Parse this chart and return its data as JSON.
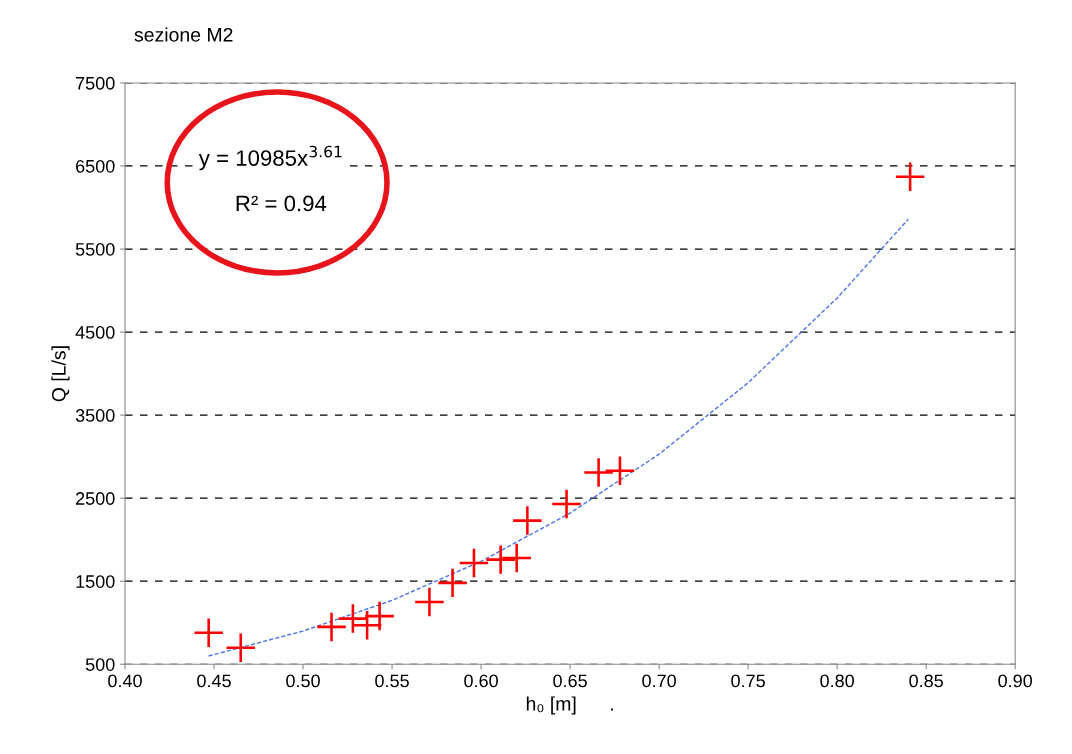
{
  "chart_data": {
    "type": "scatter",
    "title": "sezione M2",
    "xlabel": "h₀ [m]      .",
    "ylabel": "Q [L/s]",
    "xlim": [
      0.4,
      0.9
    ],
    "xticks": [
      {
        "value": 0.4,
        "label": "0.40"
      },
      {
        "value": 0.45,
        "label": "0.45"
      },
      {
        "value": 0.5,
        "label": "0.50"
      },
      {
        "value": 0.55,
        "label": "0.55"
      },
      {
        "value": 0.6,
        "label": "0.60"
      },
      {
        "value": 0.65,
        "label": "0.65"
      },
      {
        "value": 0.7,
        "label": "0.70"
      },
      {
        "value": 0.75,
        "label": "0.75"
      },
      {
        "value": 0.8,
        "label": "0.80"
      },
      {
        "value": 0.85,
        "label": "0.85"
      },
      {
        "value": 0.9,
        "label": "0.90"
      }
    ],
    "ylim": [
      500,
      7500
    ],
    "yticks": [
      500,
      1500,
      2500,
      3500,
      4500,
      5500,
      6500,
      7500
    ],
    "grid": "y",
    "marker": "cross",
    "annotations": [
      "y = 10985x$^{3.61}$",
      "R² = 0.94"
    ],
    "series": [
      {
        "color": "#ff0000",
        "x": [
          0.447,
          0.465,
          0.516,
          0.528,
          0.536,
          0.543,
          0.571,
          0.584,
          0.596,
          0.611,
          0.62,
          0.626,
          0.648,
          0.666,
          0.678,
          0.841
        ],
        "values": [
          880,
          700,
          950,
          1050,
          970,
          1080,
          1250,
          1480,
          1720,
          1760,
          1780,
          2230,
          2430,
          2810,
          2830,
          6370
        ]
      },
      {
        "type": "line",
        "marker": "none",
        "color": "#4a74e8",
        "line_style": "dashed",
        "x": [
          0.447,
          0.5,
          0.55,
          0.6,
          0.65,
          0.7,
          0.75,
          0.8,
          0.84
        ],
        "values": [
          600,
          900,
          1270,
          1740,
          2320,
          3030,
          3890,
          4910,
          5860
        ]
      }
    ]
  }
}
